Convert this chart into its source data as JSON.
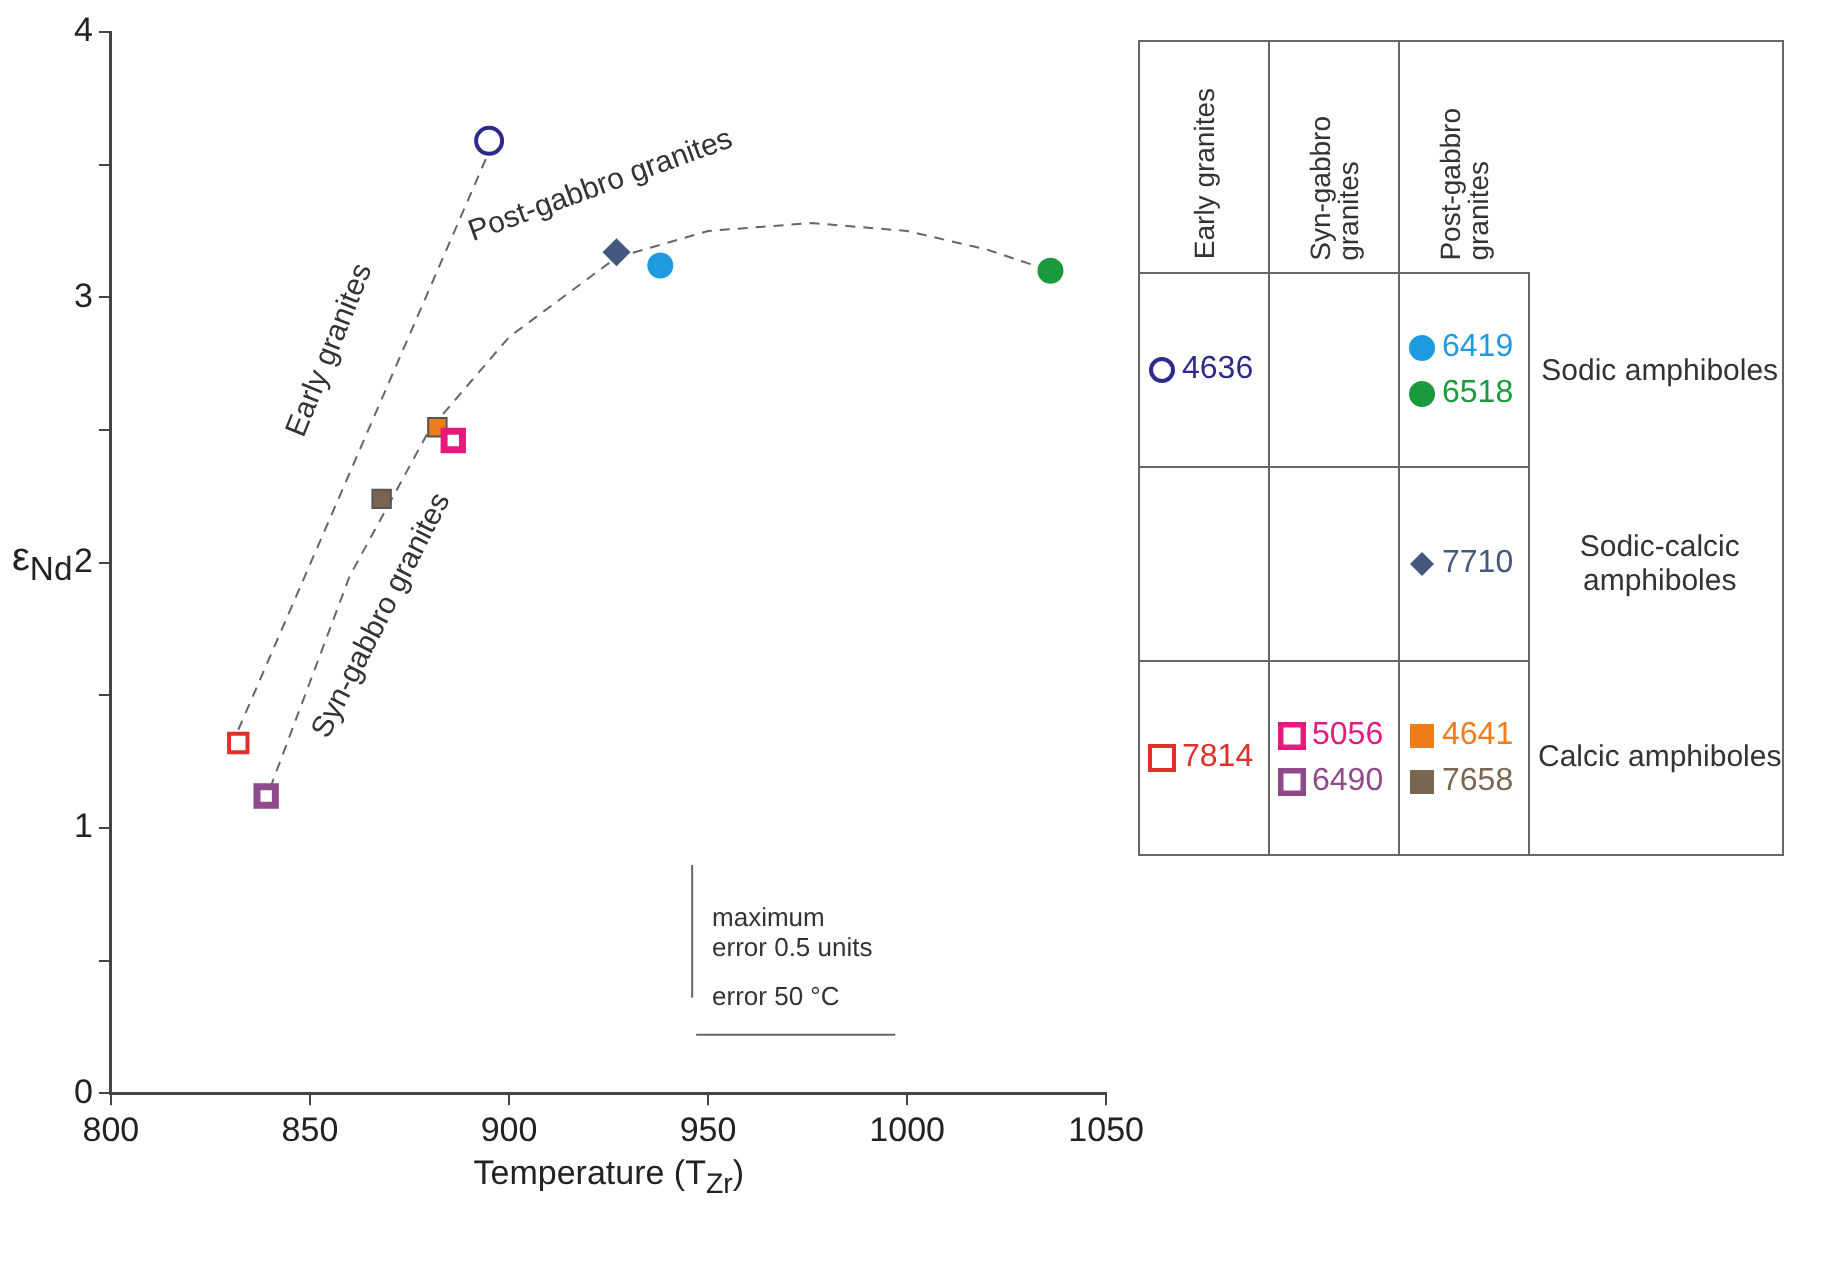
{
  "chart_data": {
    "type": "scatter",
    "xlabel": "Temperature (T$_{Zr}$)",
    "ylabel": "ε$_{Nd}$",
    "xlim": [
      800,
      1050
    ],
    "xticks": [
      800,
      850,
      900,
      950,
      1000,
      1050
    ],
    "ylim": [
      0,
      4
    ],
    "yticks": [
      0,
      {
        "value": 0.5,
        "label": null
      },
      1,
      {
        "value": 1.5,
        "label": null
      },
      2,
      {
        "value": 2.5,
        "label": null
      },
      3,
      {
        "value": 3.5,
        "label": null
      },
      4
    ],
    "grid": false,
    "legend": "right",
    "series": [
      {
        "name": "4636",
        "color": "#2e2a8c",
        "marker": "circle",
        "x": [
          895
        ],
        "values": [
          3.59
        ]
      },
      {
        "name": "6419",
        "color": "#1e9be0",
        "marker": "circle",
        "x": [
          938
        ],
        "values": [
          3.12
        ]
      },
      {
        "name": "6518",
        "color": "#1a9a3c",
        "marker": "circle",
        "x": [
          1036
        ],
        "values": [
          3.1
        ]
      },
      {
        "name": "7710",
        "color": "#44587e",
        "marker": "diamond",
        "x": [
          927
        ],
        "values": [
          3.17
        ]
      },
      {
        "name": "7814",
        "color": "#e0302a",
        "marker": "square",
        "x": [
          832
        ],
        "values": [
          1.32
        ]
      },
      {
        "name": "5056",
        "color": "#e6197f",
        "marker": "square",
        "x": [
          886
        ],
        "values": [
          2.46
        ]
      },
      {
        "name": "6490",
        "color": "#8e4a8a",
        "marker": "square",
        "x": [
          839
        ],
        "values": [
          1.12
        ]
      },
      {
        "name": "4641",
        "color": "#ee7d1a",
        "marker": "square",
        "x": [
          882
        ],
        "values": [
          2.51
        ]
      },
      {
        "name": "7658",
        "color": "#7a6650",
        "marker": "square",
        "x": [
          868
        ],
        "values": [
          2.24
        ]
      },
      {
        "type": "line",
        "color": "#666666",
        "line_style": "dashed",
        "marker": "none",
        "x": [
          832,
          895
        ],
        "values": [
          1.37,
          3.55
        ]
      },
      {
        "type": "line",
        "color": "#666666",
        "line_style": "dashed",
        "marker": "none",
        "x": [
          840,
          860,
          880,
          900,
          927,
          950,
          976,
          1000,
          1020,
          1036
        ],
        "values": [
          1.15,
          1.95,
          2.5,
          2.85,
          3.15,
          3.25,
          3.28,
          3.25,
          3.18,
          3.1
        ]
      },
      {
        "type": "line",
        "color": "#666666",
        "line_style": "solid",
        "marker": "none",
        "x": [
          946,
          946
        ],
        "values": [
          0.36,
          0.86
        ]
      },
      {
        "type": "line",
        "color": "#666666",
        "line_style": "solid",
        "marker": "none",
        "x": [
          947,
          997
        ],
        "values": [
          0.22,
          0.22
        ]
      }
    ],
    "annotations": [
      "Early granites",
      "Syn-gabbro granites",
      "Post-gabbro granites",
      "maximum\nerror 0.5 units",
      "error 50 °C",
      "Early granites",
      "Syn-gabbro\ngranites",
      "Post-gabbro\ngranites",
      "Sodic amphiboles",
      "Sodic-calcic\namphiboles",
      "Calcic amphiboles"
    ]
  }
}
